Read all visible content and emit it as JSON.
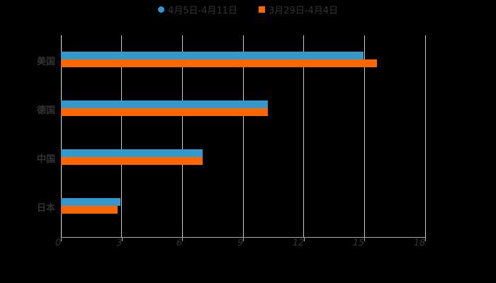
{
  "chart_data": {
    "type": "bar",
    "orientation": "horizontal",
    "title": "",
    "categories": [
      "美国",
      "德国",
      "中国",
      "日本"
    ],
    "series": [
      {
        "name": "4月5日-4月11日",
        "color": "#3399CC",
        "values": [
          14.95,
          10.23,
          7.0,
          2.95
        ]
      },
      {
        "name": "3月29日-4月4日",
        "color": "#FF6600",
        "values": [
          15.62,
          10.23,
          7.0,
          2.81
        ]
      }
    ],
    "xlabel": "",
    "ylabel": "",
    "xlim": [
      0,
      18
    ],
    "xticks": [
      "0",
      "3",
      "6",
      "9",
      "12",
      "15",
      "18"
    ],
    "grid": true,
    "legend_position": "top"
  },
  "legend": {
    "series0": "4月5日-4月11日",
    "series1": "3月29日-4月4日"
  }
}
